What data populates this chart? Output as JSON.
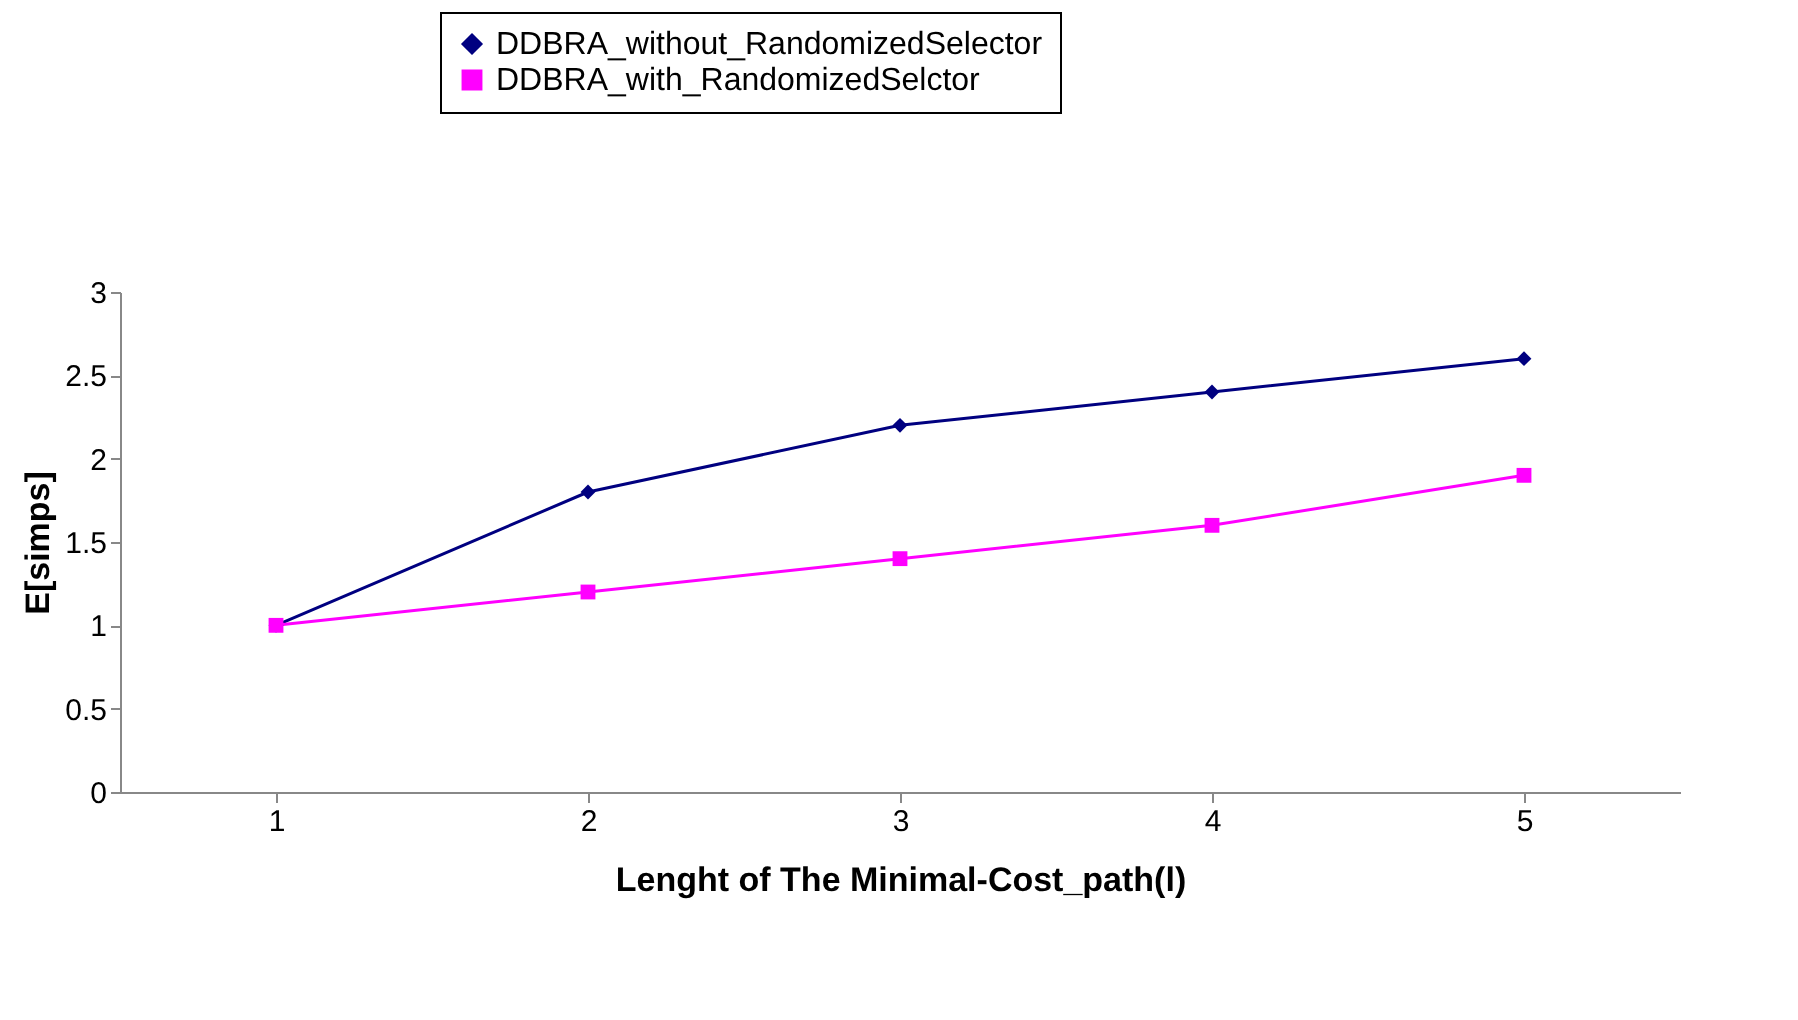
{
  "chart_data": {
    "type": "line",
    "xlabel": "Lenght of The Minimal-Cost_path(l)",
    "ylabel": "E[simps]",
    "categories": [
      "1",
      "2",
      "3",
      "4",
      "5"
    ],
    "series": [
      {
        "name": "DDBRA_without_RandomizedSelector",
        "color": "#000080",
        "marker": "diamond",
        "values": [
          1,
          1.8,
          2.2,
          2.4,
          2.6
        ]
      },
      {
        "name": "DDBRA_with_RandomizedSelctor",
        "color": "#ff00ff",
        "marker": "square",
        "values": [
          1,
          1.2,
          1.4,
          1.6,
          1.9
        ]
      }
    ],
    "ylim": [
      0,
      3
    ],
    "yticks": [
      0,
      0.5,
      1,
      1.5,
      2,
      2.5,
      3
    ],
    "grid": false,
    "legend": "top",
    "line_style": "solid"
  }
}
